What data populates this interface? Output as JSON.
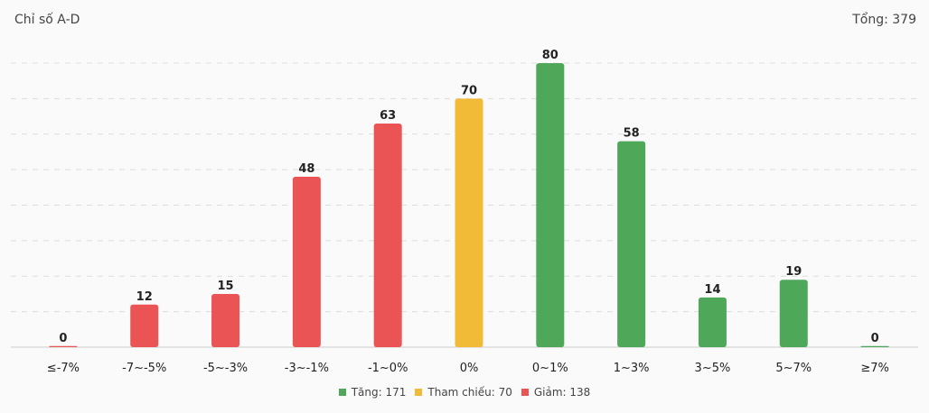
{
  "header": {
    "title": "Chỉ số A-D",
    "total": "Tổng: 379"
  },
  "colors": {
    "up": "#4fa75a",
    "ref": "#f2bb37",
    "down": "#eb5455",
    "grid": "#dddddd",
    "axis": "#cccccc"
  },
  "chart_data": {
    "type": "bar",
    "categories": [
      "≤-7%",
      "-7~-5%",
      "-5~-3%",
      "-3~-1%",
      "-1~0%",
      "0%",
      "0~1%",
      "1~3%",
      "3~5%",
      "5~7%",
      "≥7%"
    ],
    "values": [
      0,
      12,
      15,
      48,
      63,
      70,
      80,
      58,
      14,
      19,
      0
    ],
    "groups": [
      "down",
      "down",
      "down",
      "down",
      "down",
      "ref",
      "up",
      "up",
      "up",
      "up",
      "up"
    ],
    "ylim": [
      0,
      80
    ],
    "grid": true,
    "legend_position": "bottom-center"
  },
  "legend": [
    {
      "key": "up",
      "label": "Tăng: 171"
    },
    {
      "key": "ref",
      "label": "Tham chiếu: 70"
    },
    {
      "key": "down",
      "label": "Giảm: 138"
    }
  ]
}
